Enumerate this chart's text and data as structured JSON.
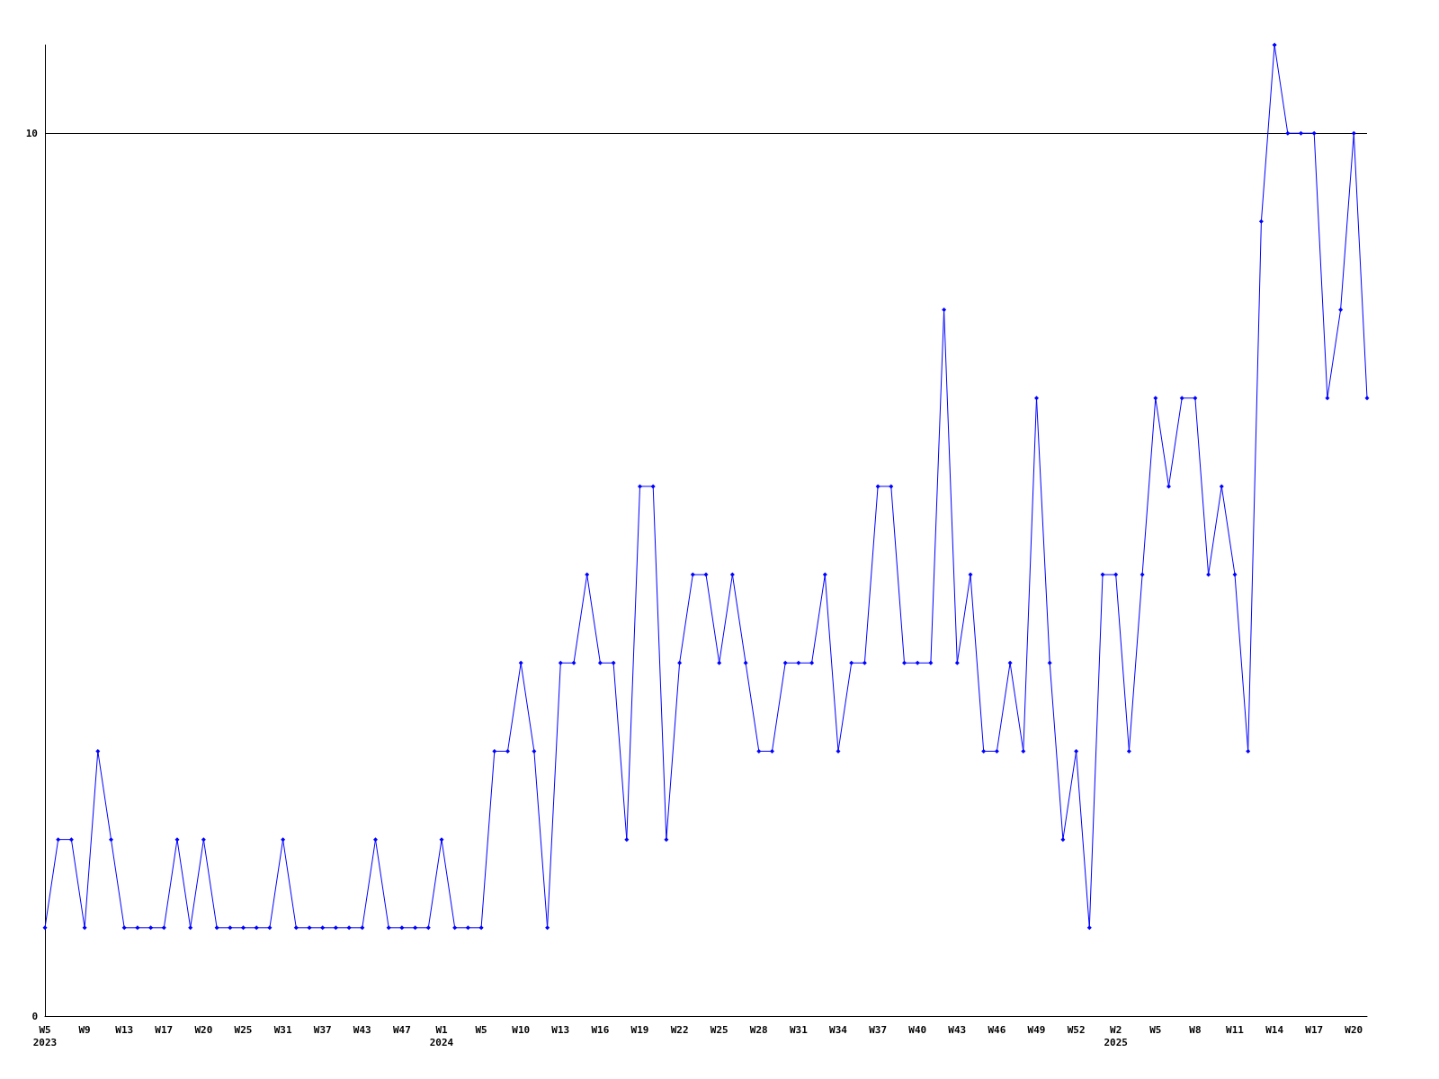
{
  "chart_data": {
    "type": "line",
    "categories": [
      "W5\n2023",
      null,
      null,
      "W9",
      null,
      null,
      "W13",
      null,
      null,
      "W17",
      null,
      null,
      "W20",
      null,
      null,
      "W25",
      null,
      null,
      "W31",
      null,
      null,
      "W37",
      null,
      null,
      "W43",
      null,
      null,
      "W47",
      null,
      null,
      "W1\n2024",
      null,
      null,
      "W5",
      null,
      null,
      "W10",
      null,
      null,
      "W13",
      null,
      null,
      "W16",
      null,
      null,
      "W19",
      null,
      null,
      "W22",
      null,
      null,
      "W25",
      null,
      null,
      "W28",
      null,
      null,
      "W31",
      null,
      null,
      "W34",
      null,
      null,
      "W37",
      null,
      null,
      "W40",
      null,
      null,
      "W43",
      null,
      null,
      "W46",
      null,
      null,
      "W49",
      null,
      null,
      "W52",
      null,
      null,
      "W2\n2025",
      null,
      null,
      "W5",
      null,
      null,
      "W8",
      null,
      null,
      "W11",
      null,
      null,
      "W14",
      null,
      null,
      "W17",
      null,
      null,
      "W20",
      null
    ],
    "series": [
      {
        "color": "#0000ff",
        "values": [
          1,
          2,
          2,
          1,
          3,
          2,
          1,
          1,
          1,
          1,
          2,
          1,
          2,
          1,
          1,
          1,
          1,
          1,
          2,
          1,
          1,
          1,
          1,
          1,
          1,
          2,
          1,
          1,
          1,
          1,
          2,
          1,
          1,
          1,
          3,
          3,
          4,
          3,
          1,
          4,
          4,
          5,
          4,
          4,
          2,
          6,
          6,
          2,
          4,
          5,
          5,
          4,
          5,
          4,
          3,
          3,
          4,
          4,
          4,
          5,
          3,
          4,
          4,
          6,
          6,
          4,
          4,
          4,
          8,
          4,
          5,
          3,
          3,
          4,
          3,
          7,
          4,
          2,
          3,
          1,
          5,
          5,
          3,
          5,
          7,
          6,
          7,
          7,
          5,
          6,
          5,
          3,
          9,
          11,
          10,
          10,
          10,
          7,
          8,
          10,
          7
        ]
      }
    ],
    "ylim": [
      0,
      11
    ],
    "yticks": [
      0,
      10
    ],
    "grid": "y",
    "marker": "diamond",
    "line_style": "solid"
  }
}
